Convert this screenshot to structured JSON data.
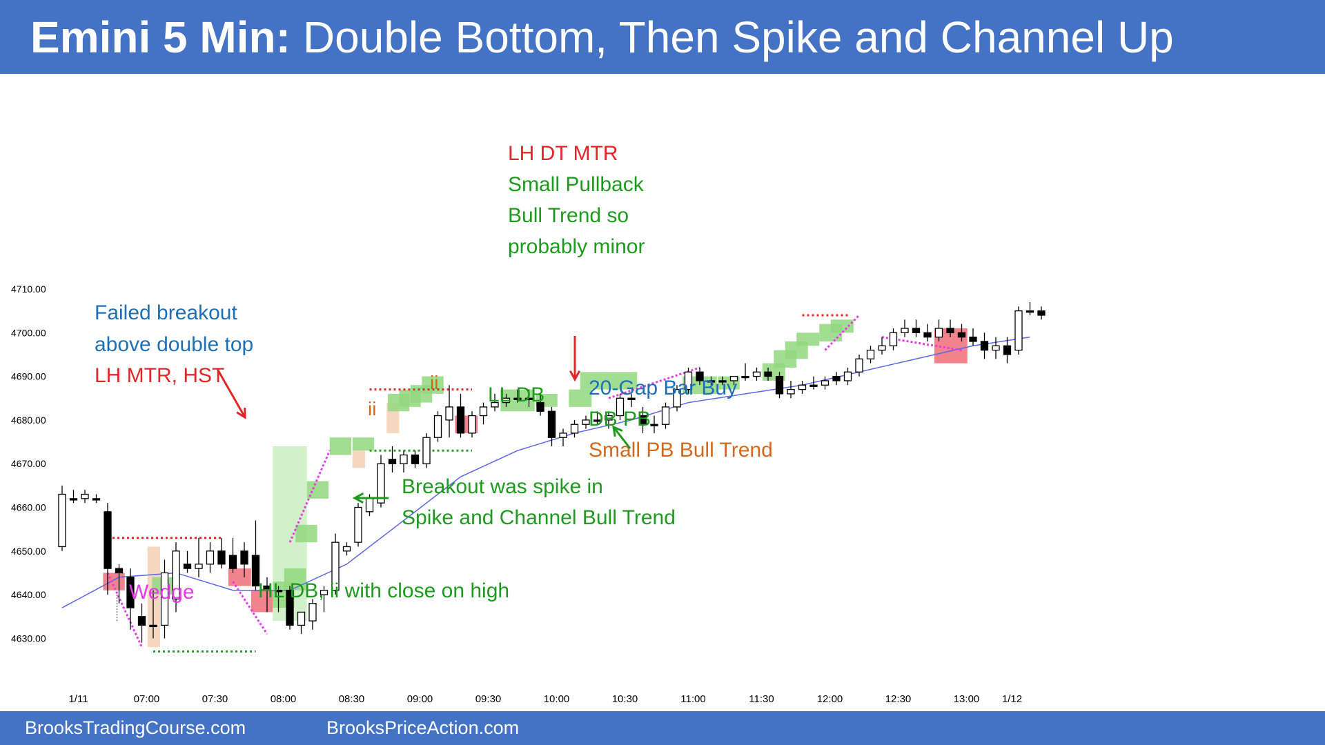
{
  "header": {
    "title_bold": "Emini 5 Min:",
    "title_rest": "Double Bottom, Then Spike and Channel Up",
    "color": "#4472c4"
  },
  "footer": {
    "site1": "BrooksTradingCourse.com",
    "site2": "BrooksPriceAction.com"
  },
  "colors": {
    "bull_highlight": "#92d87f",
    "bear_highlight": "#f06c78",
    "inside_highlight": "#f3cfb4",
    "spike_highlight": "#c9eec1",
    "ema_line": "#5b66e8",
    "magenta": "#e83ae8",
    "red_dotted": "#e0282a",
    "green_dotted": "#2e9a2e"
  },
  "chart_data": {
    "type": "candlestick",
    "ylim": [
      4627,
      4714
    ],
    "y_ticks": [
      {
        "value": 4710,
        "label": "4710.00"
      },
      {
        "value": 4700,
        "label": "4700.00"
      },
      {
        "value": 4690,
        "label": "4690.00"
      },
      {
        "value": 4680,
        "label": "4680.00"
      },
      {
        "value": 4670,
        "label": "4670.00"
      },
      {
        "value": 4660,
        "label": "4660.00"
      },
      {
        "value": 4650,
        "label": "4650.00"
      },
      {
        "value": 4640,
        "label": "4640.00"
      },
      {
        "value": 4630,
        "label": "4630.00"
      }
    ],
    "x_ticks": [
      {
        "bar": 1,
        "label": "1/11"
      },
      {
        "bar": 7,
        "label": "07:00"
      },
      {
        "bar": 13,
        "label": "07:30"
      },
      {
        "bar": 19,
        "label": "08:00"
      },
      {
        "bar": 25,
        "label": "08:30"
      },
      {
        "bar": 31,
        "label": "09:00"
      },
      {
        "bar": 37,
        "label": "09:30"
      },
      {
        "bar": 43,
        "label": "10:00"
      },
      {
        "bar": 49,
        "label": "10:30"
      },
      {
        "bar": 55,
        "label": "11:00"
      },
      {
        "bar": 61,
        "label": "11:30"
      },
      {
        "bar": 67,
        "label": "12:00"
      },
      {
        "bar": 73,
        "label": "12:30"
      },
      {
        "bar": 79,
        "label": "13:00"
      },
      {
        "bar": 83,
        "label": "1/12"
      }
    ],
    "bars": [
      {
        "o": 4651,
        "h": 4665,
        "l": 4650,
        "c": 4663
      },
      {
        "o": 4662,
        "h": 4664,
        "l": 4661,
        "c": 4662
      },
      {
        "o": 4662,
        "h": 4664,
        "l": 4661,
        "c": 4663
      },
      {
        "o": 4662,
        "h": 4663,
        "l": 4661,
        "c": 4662
      },
      {
        "o": 4659,
        "h": 4661,
        "l": 4640,
        "c": 4646
      },
      {
        "o": 4646,
        "h": 4647,
        "l": 4638,
        "c": 4645
      },
      {
        "o": 4644,
        "h": 4646,
        "l": 4632,
        "c": 4637
      },
      {
        "o": 4635,
        "h": 4638,
        "l": 4629,
        "c": 4633
      },
      {
        "o": 4633,
        "h": 4641,
        "l": 4630,
        "c": 4633
      },
      {
        "o": 4633,
        "h": 4648,
        "l": 4630,
        "c": 4645
      },
      {
        "o": 4639,
        "h": 4652,
        "l": 4636,
        "c": 4650
      },
      {
        "o": 4647,
        "h": 4650,
        "l": 4645,
        "c": 4646
      },
      {
        "o": 4646,
        "h": 4653,
        "l": 4644,
        "c": 4647
      },
      {
        "o": 4647,
        "h": 4652,
        "l": 4645,
        "c": 4650
      },
      {
        "o": 4650,
        "h": 4653,
        "l": 4646,
        "c": 4647
      },
      {
        "o": 4649,
        "h": 4653,
        "l": 4645,
        "c": 4646
      },
      {
        "o": 4650,
        "h": 4652,
        "l": 4644,
        "c": 4647
      },
      {
        "o": 4649,
        "h": 4657,
        "l": 4641,
        "c": 4642
      },
      {
        "o": 4642,
        "h": 4644,
        "l": 4636,
        "c": 4641
      },
      {
        "o": 4641,
        "h": 4642,
        "l": 4636,
        "c": 4641
      },
      {
        "o": 4641,
        "h": 4642,
        "l": 4632,
        "c": 4633
      },
      {
        "o": 4633,
        "h": 4636,
        "l": 4631,
        "c": 4636
      },
      {
        "o": 4634,
        "h": 4639,
        "l": 4632,
        "c": 4638
      },
      {
        "o": 4640,
        "h": 4642,
        "l": 4636,
        "c": 4641
      },
      {
        "o": 4641,
        "h": 4654,
        "l": 4640,
        "c": 4652
      },
      {
        "o": 4650,
        "h": 4652,
        "l": 4649,
        "c": 4651
      },
      {
        "o": 4652,
        "h": 4661,
        "l": 4651,
        "c": 4660
      },
      {
        "o": 4659,
        "h": 4663,
        "l": 4658,
        "c": 4662
      },
      {
        "o": 4661,
        "h": 4672,
        "l": 4660,
        "c": 4670
      },
      {
        "o": 4671,
        "h": 4674,
        "l": 4668,
        "c": 4670
      },
      {
        "o": 4670,
        "h": 4673,
        "l": 4668,
        "c": 4672
      },
      {
        "o": 4672,
        "h": 4673,
        "l": 4669,
        "c": 4670
      },
      {
        "o": 4670,
        "h": 4677,
        "l": 4669,
        "c": 4676
      },
      {
        "o": 4676,
        "h": 4682,
        "l": 4675,
        "c": 4681
      },
      {
        "o": 4680,
        "h": 4688,
        "l": 4676,
        "c": 4683
      },
      {
        "o": 4683,
        "h": 4686,
        "l": 4676,
        "c": 4677
      },
      {
        "o": 4677,
        "h": 4682,
        "l": 4676,
        "c": 4681
      },
      {
        "o": 4681,
        "h": 4684,
        "l": 4679,
        "c": 4683
      },
      {
        "o": 4683,
        "h": 4686,
        "l": 4682,
        "c": 4684
      },
      {
        "o": 4684,
        "h": 4686,
        "l": 4683,
        "c": 4685
      },
      {
        "o": 4685,
        "h": 4687,
        "l": 4684,
        "c": 4685
      },
      {
        "o": 4685,
        "h": 4687,
        "l": 4683,
        "c": 4685
      },
      {
        "o": 4684,
        "h": 4686,
        "l": 4681,
        "c": 4682
      },
      {
        "o": 4682,
        "h": 4683,
        "l": 4674,
        "c": 4676
      },
      {
        "o": 4676,
        "h": 4678,
        "l": 4674,
        "c": 4677
      },
      {
        "o": 4677,
        "h": 4680,
        "l": 4676,
        "c": 4679
      },
      {
        "o": 4679,
        "h": 4681,
        "l": 4678,
        "c": 4680
      },
      {
        "o": 4680,
        "h": 4682,
        "l": 4679,
        "c": 4680
      },
      {
        "o": 4680,
        "h": 4682,
        "l": 4678,
        "c": 4681
      },
      {
        "o": 4681,
        "h": 4686,
        "l": 4680,
        "c": 4685
      },
      {
        "o": 4685,
        "h": 4686,
        "l": 4683,
        "c": 4685
      },
      {
        "o": 4681,
        "h": 4683,
        "l": 4677,
        "c": 4679
      },
      {
        "o": 4679,
        "h": 4681,
        "l": 4677,
        "c": 4679
      },
      {
        "o": 4679,
        "h": 4684,
        "l": 4678,
        "c": 4683
      },
      {
        "o": 4683,
        "h": 4688,
        "l": 4682,
        "c": 4687
      },
      {
        "o": 4687,
        "h": 4692,
        "l": 4686,
        "c": 4691
      },
      {
        "o": 4691,
        "h": 4692,
        "l": 4688,
        "c": 4689
      },
      {
        "o": 4689,
        "h": 4690,
        "l": 4688,
        "c": 4689
      },
      {
        "o": 4689,
        "h": 4690,
        "l": 4688,
        "c": 4689
      },
      {
        "o": 4689,
        "h": 4690,
        "l": 4688,
        "c": 4690
      },
      {
        "o": 4690,
        "h": 4693,
        "l": 4689,
        "c": 4690
      },
      {
        "o": 4690,
        "h": 4692,
        "l": 4689,
        "c": 4691
      },
      {
        "o": 4691,
        "h": 4692,
        "l": 4689,
        "c": 4690
      },
      {
        "o": 4690,
        "h": 4691,
        "l": 4685,
        "c": 4686
      },
      {
        "o": 4686,
        "h": 4689,
        "l": 4685,
        "c": 4687
      },
      {
        "o": 4687,
        "h": 4689,
        "l": 4686,
        "c": 4688
      },
      {
        "o": 4688,
        "h": 4690,
        "l": 4687,
        "c": 4688
      },
      {
        "o": 4688,
        "h": 4690,
        "l": 4687,
        "c": 4689
      },
      {
        "o": 4690,
        "h": 4691,
        "l": 4688,
        "c": 4689
      },
      {
        "o": 4689,
        "h": 4692,
        "l": 4688,
        "c": 4691
      },
      {
        "o": 4691,
        "h": 4695,
        "l": 4690,
        "c": 4694
      },
      {
        "o": 4694,
        "h": 4697,
        "l": 4693,
        "c": 4696
      },
      {
        "o": 4696,
        "h": 4699,
        "l": 4695,
        "c": 4697
      },
      {
        "o": 4697,
        "h": 4701,
        "l": 4696,
        "c": 4700
      },
      {
        "o": 4700,
        "h": 4703,
        "l": 4699,
        "c": 4701
      },
      {
        "o": 4701,
        "h": 4703,
        "l": 4699,
        "c": 4700
      },
      {
        "o": 4700,
        "h": 4702,
        "l": 4698,
        "c": 4699
      },
      {
        "o": 4699,
        "h": 4703,
        "l": 4698,
        "c": 4701
      },
      {
        "o": 4701,
        "h": 4703,
        "l": 4699,
        "c": 4700
      },
      {
        "o": 4700,
        "h": 4702,
        "l": 4698,
        "c": 4699
      },
      {
        "o": 4699,
        "h": 4701,
        "l": 4697,
        "c": 4698
      },
      {
        "o": 4698,
        "h": 4700,
        "l": 4694,
        "c": 4696
      },
      {
        "o": 4696,
        "h": 4699,
        "l": 4694,
        "c": 4697
      },
      {
        "o": 4697,
        "h": 4699,
        "l": 4693,
        "c": 4695
      },
      {
        "o": 4696,
        "h": 4706,
        "l": 4695,
        "c": 4705
      },
      {
        "o": 4705,
        "h": 4707,
        "l": 4704,
        "c": 4705
      },
      {
        "o": 4705,
        "h": 4706,
        "l": 4703,
        "c": 4704
      }
    ],
    "ema": [
      [
        0,
        4637
      ],
      [
        5,
        4644
      ],
      [
        10,
        4645
      ],
      [
        15,
        4641
      ],
      [
        20,
        4641
      ],
      [
        25,
        4647
      ],
      [
        30,
        4657
      ],
      [
        35,
        4667
      ],
      [
        40,
        4673
      ],
      [
        45,
        4677
      ],
      [
        50,
        4680
      ],
      [
        55,
        4684
      ],
      [
        60,
        4686
      ],
      [
        65,
        4688
      ],
      [
        70,
        4691
      ],
      [
        75,
        4694
      ],
      [
        80,
        4697
      ],
      [
        85,
        4699
      ]
    ],
    "annotations": [
      {
        "text": "Failed breakout",
        "color": "#1f6fb5"
      },
      {
        "text": "above double top",
        "color": "#1f6fb5"
      },
      {
        "text": "LH MTR, HST",
        "color": "#e0282a"
      },
      {
        "text": "LH DT MTR",
        "color": "#e0282a"
      },
      {
        "text": "Small Pullback",
        "color": "#1e9a1e"
      },
      {
        "text": "Bull Trend so",
        "color": "#1e9a1e"
      },
      {
        "text": "probably minor",
        "color": "#1e9a1e"
      },
      {
        "text": "20-Gap Bar Buy",
        "color": "#1f6fb5"
      },
      {
        "text": "DB PB",
        "color": "#1e9a1e"
      },
      {
        "text": "Small PB Bull Trend",
        "color": "#d2691e"
      },
      {
        "text": "Breakout was spike in",
        "color": "#1e9a1e"
      },
      {
        "text": "Spike and Channel Bull Trend",
        "color": "#1e9a1e"
      },
      {
        "text": "LL DB",
        "color": "#1e9a1e"
      },
      {
        "text": "ii",
        "color": "#d2691e"
      },
      {
        "text": "ii",
        "color": "#d2691e"
      },
      {
        "text": "Wedge",
        "color": "#e83ae8"
      },
      {
        "text": "HL DB, ii with close on high",
        "color": "#1e9a1e"
      }
    ]
  }
}
